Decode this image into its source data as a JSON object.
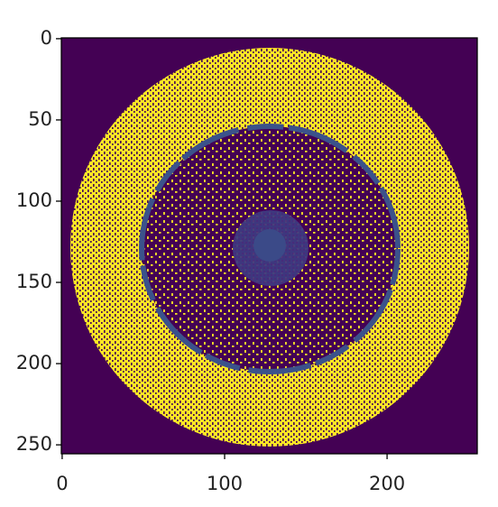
{
  "chart_data": {
    "type": "image",
    "xlim": [
      -0.5,
      255.5
    ],
    "ylim": [
      255.5,
      -0.5
    ],
    "xticks": [
      0,
      100,
      200
    ],
    "yticks": [
      0,
      50,
      100,
      150,
      200,
      250
    ]
  }
}
